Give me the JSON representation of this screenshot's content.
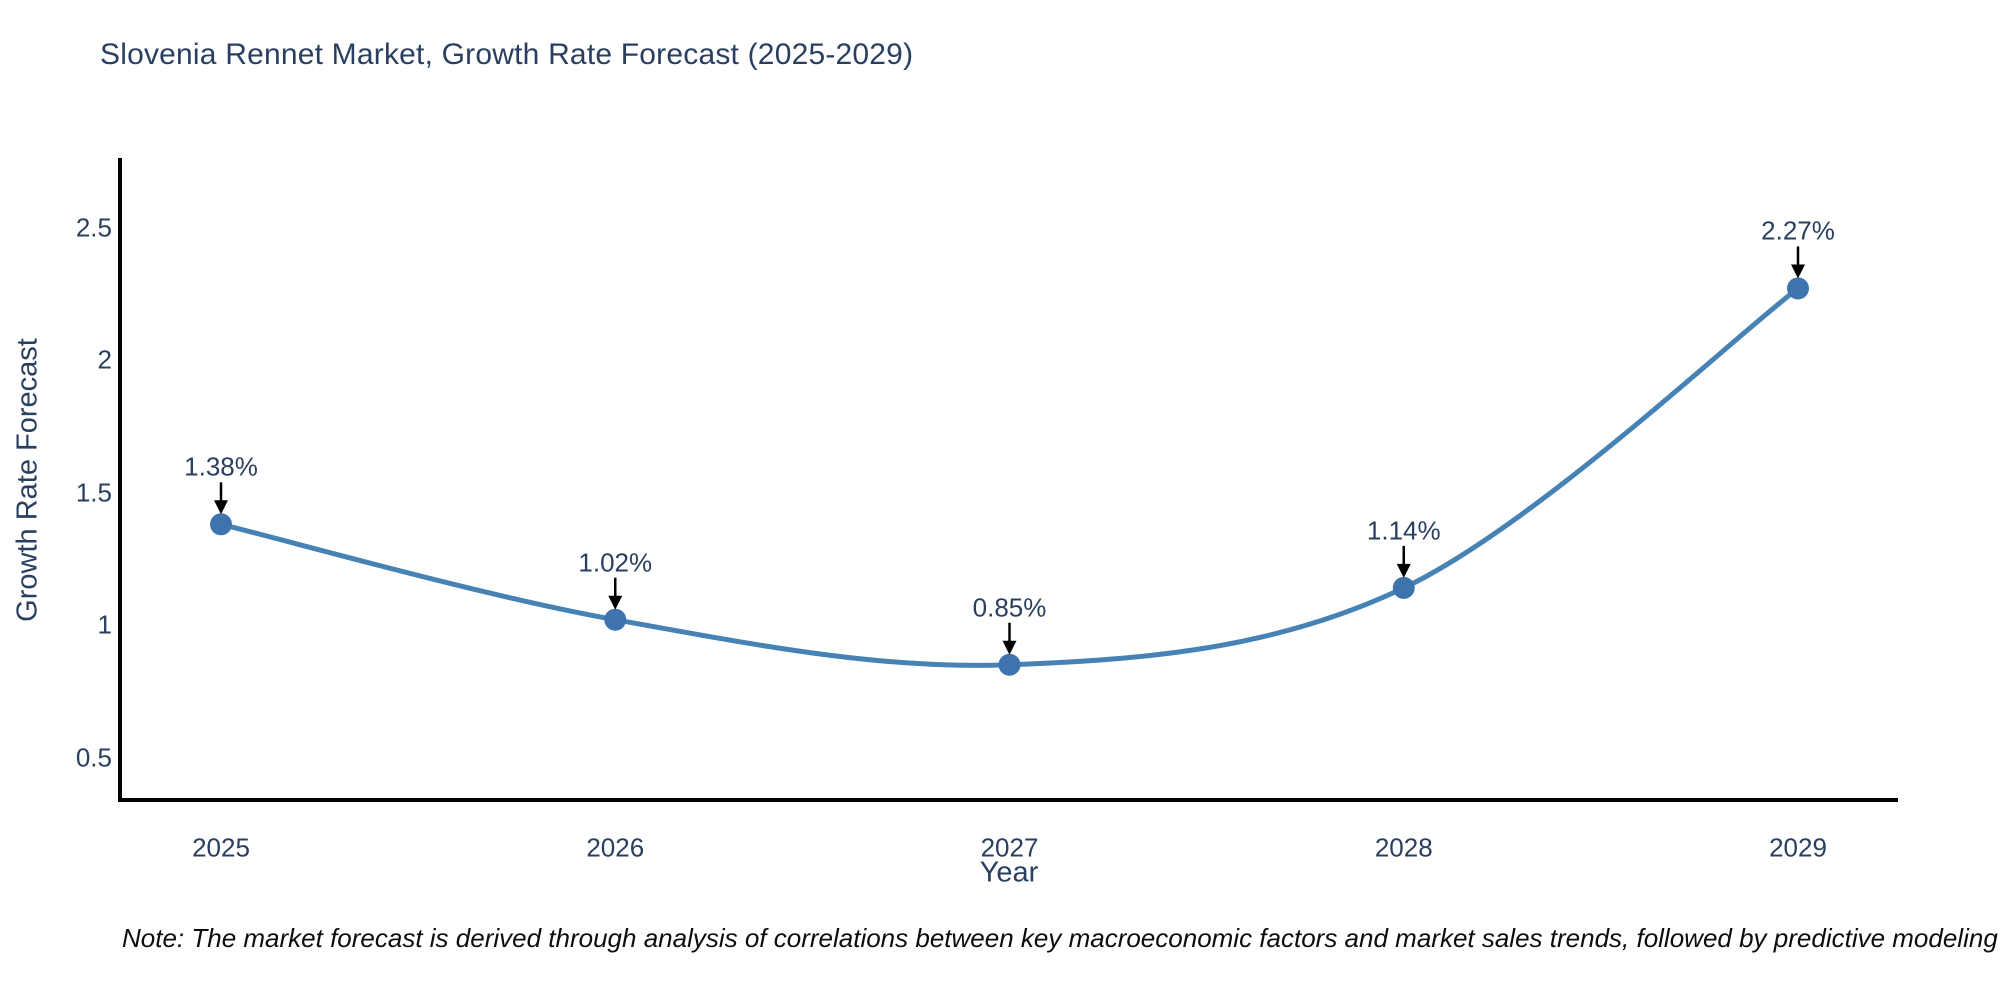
{
  "header": {
    "title": "Slovenia Rennet Market, Growth Rate Forecast (2025-2029)"
  },
  "chart_data": {
    "type": "line",
    "title": "Slovenia Rennet Market, Growth Rate Forecast (2025-2029)",
    "xlabel": "Year",
    "ylabel": "Growth Rate Forecast",
    "x": [
      2025,
      2026,
      2027,
      2028,
      2029
    ],
    "values": [
      1.38,
      1.02,
      0.85,
      1.14,
      2.27
    ],
    "point_labels": [
      "1.38%",
      "1.02%",
      "0.85%",
      "1.14%",
      "2.27%"
    ],
    "xtick_labels": [
      "2025",
      "2026",
      "2027",
      "2028",
      "2029"
    ],
    "ytick_labels": [
      "0.5",
      "1",
      "1.5",
      "2",
      "2.5"
    ],
    "ytick_values": [
      0.5,
      1,
      1.5,
      2,
      2.5
    ],
    "ylim": [
      0.34,
      2.76
    ],
    "xlim": [
      2024.74,
      2029.25
    ],
    "grid": false,
    "legend_position": "none",
    "smooth": true,
    "annotation_arrows": true,
    "colors": {
      "line": "#4682b4",
      "marker": "#3e74ae",
      "axis": "#000000",
      "arrow": "#000000",
      "text": "#2a3f5f",
      "note_text": "#0d0d0d",
      "background": "#ffffff"
    }
  },
  "footnote": {
    "text": "Note: The market forecast is derived through analysis of correlations between key macroeconomic factors and market sales trends, followed by predictive modeling to project future sales"
  }
}
